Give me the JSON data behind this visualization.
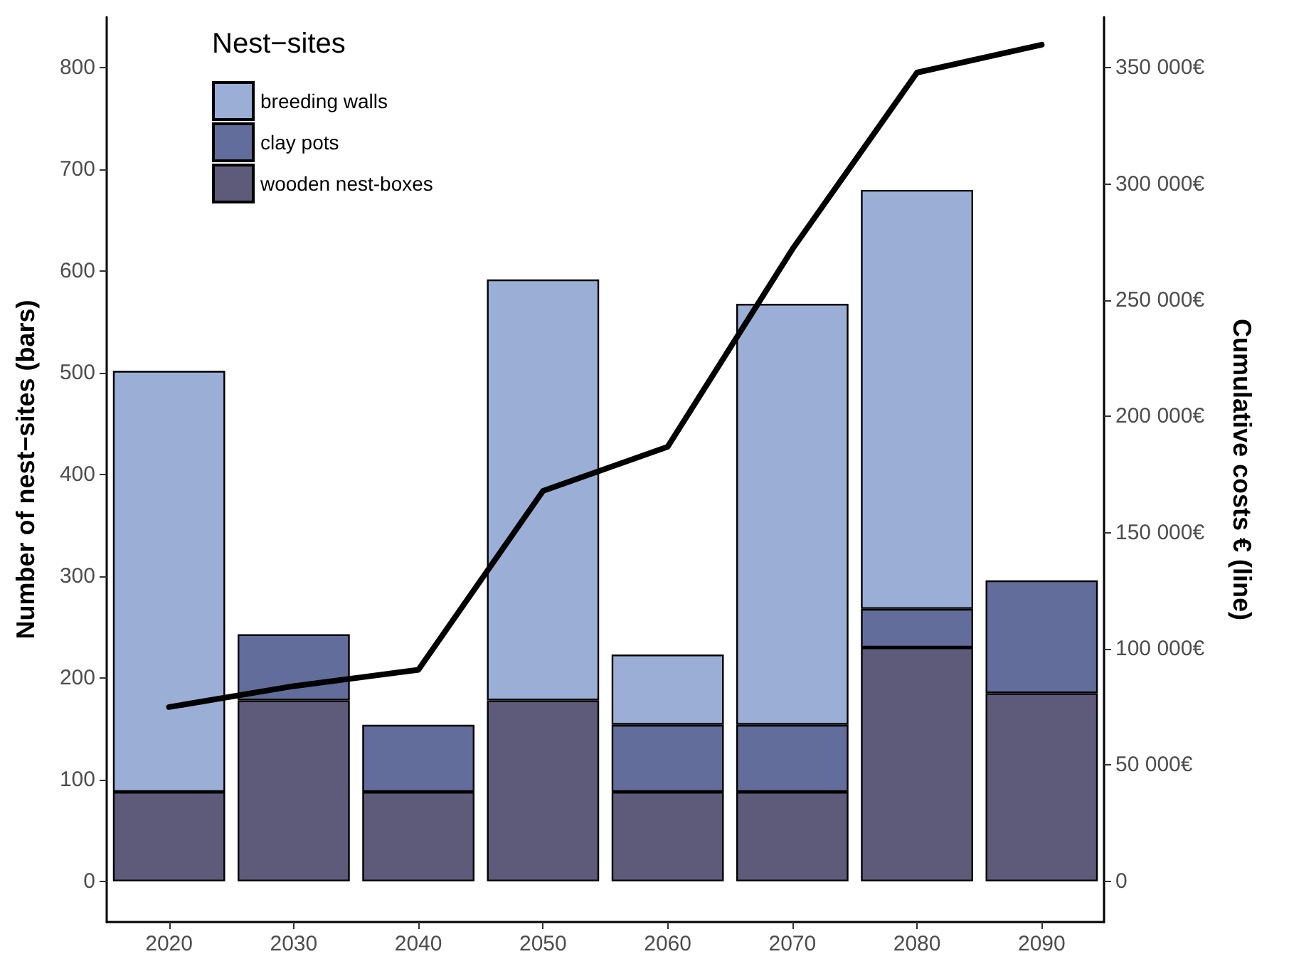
{
  "chart_data": {
    "type": "bar",
    "stacked": true,
    "ylabel": "Number of nest−sites (bars)",
    "y2label": "Cumulative costs € (line)",
    "legend_title": "Nest−sites",
    "legend": "top left",
    "grid": false,
    "categories": [
      "2020",
      "2030",
      "2040",
      "2050",
      "2060",
      "2070",
      "2080",
      "2090"
    ],
    "series": [
      {
        "name": "wooden nest-boxes",
        "color": "#5e5a7a",
        "values": [
          88,
          178,
          88,
          178,
          88,
          88,
          230,
          185
        ]
      },
      {
        "name": "clay pots",
        "color": "#636d9b",
        "values": [
          null,
          65,
          66,
          null,
          66,
          66,
          38,
          111
        ]
      },
      {
        "name": "breeding walls",
        "color": "#9baed6",
        "values": [
          414,
          null,
          null,
          414,
          69,
          414,
          412,
          null
        ]
      },
      {
        "type": "line",
        "axis": "y2",
        "color": "#000000",
        "marker": "none",
        "values": [
          75000,
          84000,
          91000,
          168000,
          187000,
          272000,
          348000,
          360000
        ]
      }
    ],
    "ylim": [
      -40,
      850
    ],
    "yticks": [
      0,
      100,
      200,
      300,
      400,
      500,
      600,
      700,
      800
    ],
    "y2lim": [
      -17500,
      371875
    ],
    "y2ticks": [
      {
        "value": 0,
        "label": "0"
      },
      {
        "value": 50000,
        "label": "50 000€"
      },
      {
        "value": 100000,
        "label": "100 000€"
      },
      {
        "value": 150000,
        "label": "150 000€"
      },
      {
        "value": 200000,
        "label": "200 000€"
      },
      {
        "value": 250000,
        "label": "250 000€"
      },
      {
        "value": 300000,
        "label": "300 000€"
      },
      {
        "value": 350000,
        "label": "350 000€"
      }
    ]
  }
}
